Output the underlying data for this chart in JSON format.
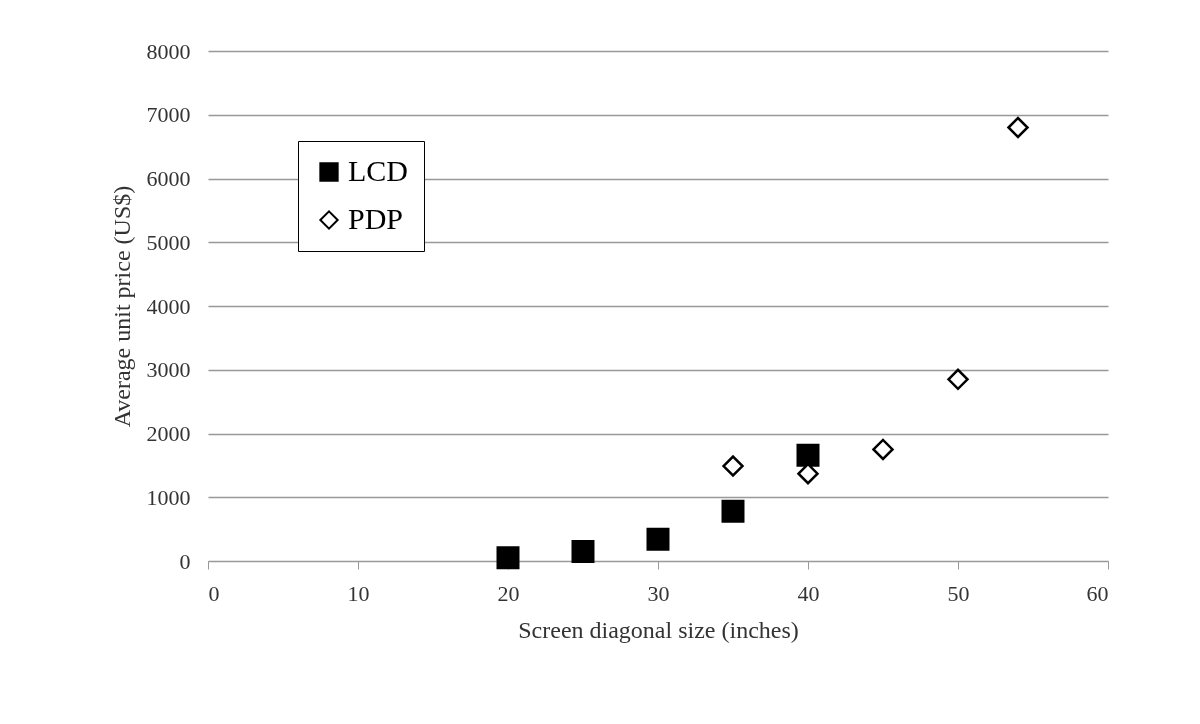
{
  "chart_data": {
    "type": "scatter",
    "xlabel": "Screen diagonal size (inches)",
    "ylabel": "Average unit price (US$)",
    "xlim": [
      0,
      60
    ],
    "xticks": [
      0,
      10,
      20,
      30,
      40,
      50,
      60
    ],
    "ylim": [
      0,
      8000
    ],
    "yticks": [
      0,
      1000,
      2000,
      3000,
      4000,
      5000,
      6000,
      7000,
      8000
    ],
    "grid": "y",
    "legend": "top left",
    "series": [
      {
        "name": "LCD",
        "color": "#000000",
        "marker": "square",
        "x": [
          20,
          25,
          30,
          35,
          40
        ],
        "values": [
          50,
          150,
          340,
          780,
          1660
        ]
      },
      {
        "name": "PDP",
        "color": "#000000",
        "marker": "diamond",
        "x": [
          35,
          40,
          45,
          50,
          54
        ],
        "values": [
          1490,
          1370,
          1750,
          2850,
          6800
        ]
      }
    ]
  }
}
